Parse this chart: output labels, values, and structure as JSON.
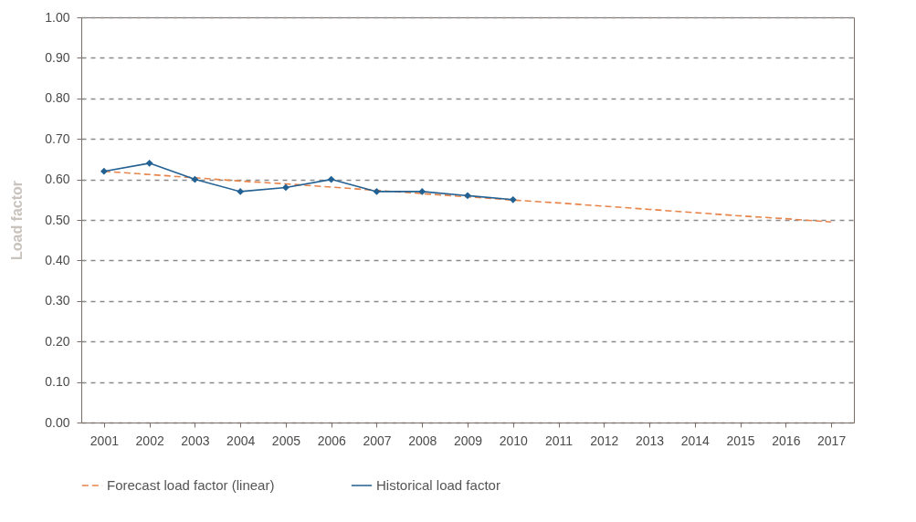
{
  "chart_data": {
    "type": "line",
    "ylabel": "Load factor",
    "categories": [
      "2001",
      "2002",
      "2003",
      "2004",
      "2005",
      "2006",
      "2007",
      "2008",
      "2009",
      "2010",
      "2011",
      "2012",
      "2013",
      "2014",
      "2015",
      "2016",
      "2017"
    ],
    "series": [
      {
        "name": "Forecast load factor (linear)",
        "color": "#e8834a",
        "line_style": "dashed",
        "marker": "none",
        "values": [
          0.62,
          0.612,
          0.604,
          0.596,
          0.589,
          0.581,
          0.573,
          0.565,
          0.557,
          0.549,
          0.542,
          0.534,
          0.526,
          0.518,
          0.51,
          0.503,
          0.495
        ]
      },
      {
        "name": "Historical load factor",
        "color": "#236192",
        "line_style": "solid",
        "marker": "diamond",
        "values": [
          0.62,
          0.64,
          0.6,
          0.57,
          0.58,
          0.6,
          0.57,
          0.57,
          0.56,
          0.55,
          null,
          null,
          null,
          null,
          null,
          null,
          null
        ]
      }
    ],
    "ylim": [
      0,
      1
    ],
    "yticks": [
      {
        "value": 0,
        "label": "0.00"
      },
      {
        "value": 0.1,
        "label": "0.10"
      },
      {
        "value": 0.2,
        "label": "0.20"
      },
      {
        "value": 0.3,
        "label": "0.30"
      },
      {
        "value": 0.4,
        "label": "0.40"
      },
      {
        "value": 0.5,
        "label": "0.50"
      },
      {
        "value": 0.6,
        "label": "0.60"
      },
      {
        "value": 0.7,
        "label": "0.70"
      },
      {
        "value": 0.8,
        "label": "0.80"
      },
      {
        "value": 0.9,
        "label": "0.90"
      },
      {
        "value": 1,
        "label": "1.00"
      }
    ],
    "grid": "y",
    "legend": "bottom"
  }
}
